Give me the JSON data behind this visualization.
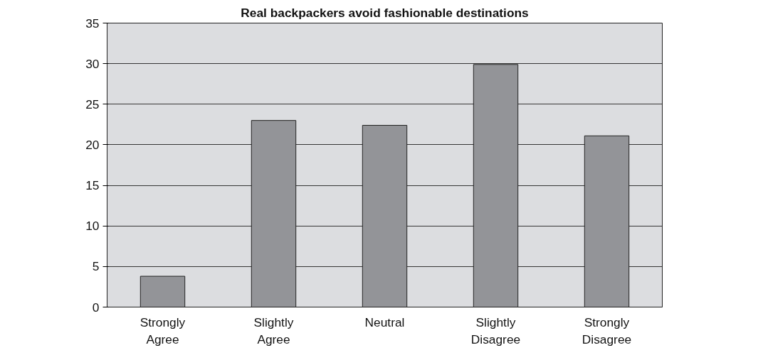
{
  "chart_data": {
    "type": "bar",
    "title": "Real backpackers avoid fashionable destinations",
    "categories": [
      "Strongly\nAgree",
      "Slightly\nAgree",
      "Neutral",
      "Slightly\nDisagree",
      "Strongly\nDisagree"
    ],
    "values": [
      3.8,
      23,
      22.4,
      29.9,
      21.1
    ],
    "color": "#939498",
    "ylim": [
      0,
      35
    ],
    "yticks": [
      0,
      5,
      10,
      15,
      20,
      25,
      30,
      35
    ],
    "grid": "y"
  }
}
